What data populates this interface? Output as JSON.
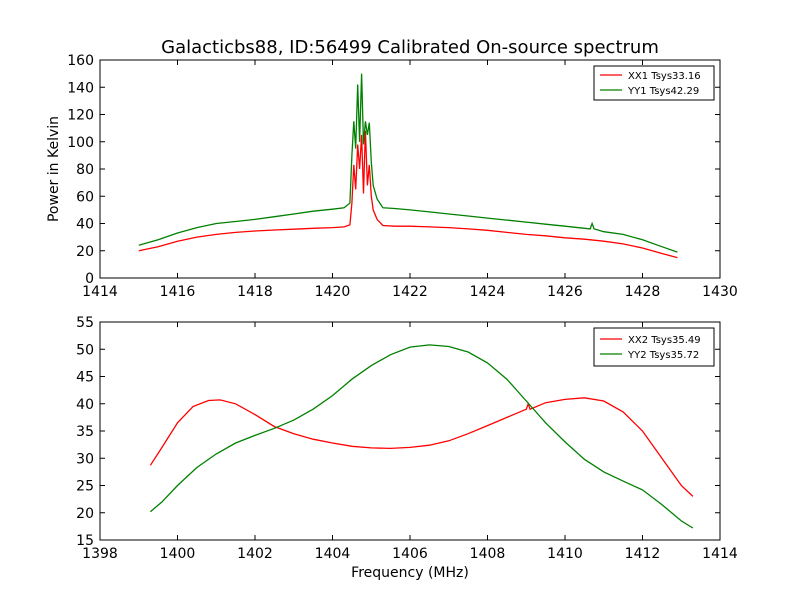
{
  "figure": {
    "title": "Galacticbs88, ID:56499 Calibrated On-source spectrum"
  },
  "chart_data": [
    {
      "type": "line",
      "title": "Galacticbs88, ID:56499 Calibrated On-source spectrum",
      "xlabel": "",
      "ylabel": "Power in Kelvin",
      "xlim": [
        1414,
        1430
      ],
      "ylim": [
        0,
        160
      ],
      "xticks": [
        1414,
        1416,
        1418,
        1420,
        1422,
        1424,
        1426,
        1428,
        1430
      ],
      "yticks": [
        0,
        20,
        40,
        60,
        80,
        100,
        120,
        140,
        160
      ],
      "grid": false,
      "legend": "top-right",
      "series": [
        {
          "name": "XX1 Tsys33.16",
          "color": "#ff0000",
          "points": [
            [
              1415.0,
              20
            ],
            [
              1415.5,
              23
            ],
            [
              1416.0,
              27
            ],
            [
              1416.5,
              30
            ],
            [
              1417.0,
              32
            ],
            [
              1417.5,
              33.5
            ],
            [
              1418.0,
              34.5
            ],
            [
              1418.5,
              35.2
            ],
            [
              1419.0,
              35.8
            ],
            [
              1419.5,
              36.5
            ],
            [
              1420.0,
              37
            ],
            [
              1420.3,
              37.5
            ],
            [
              1420.45,
              39
            ],
            [
              1420.5,
              55
            ],
            [
              1420.55,
              83
            ],
            [
              1420.6,
              65
            ],
            [
              1420.65,
              98
            ],
            [
              1420.7,
              80
            ],
            [
              1420.75,
              105
            ],
            [
              1420.8,
              62
            ],
            [
              1420.85,
              108
            ],
            [
              1420.9,
              68
            ],
            [
              1420.95,
              83
            ],
            [
              1421.0,
              60
            ],
            [
              1421.05,
              50
            ],
            [
              1421.15,
              43
            ],
            [
              1421.3,
              38.5
            ],
            [
              1421.6,
              38
            ],
            [
              1422.0,
              38
            ],
            [
              1422.5,
              37.5
            ],
            [
              1423.0,
              37
            ],
            [
              1423.5,
              36
            ],
            [
              1424.0,
              35
            ],
            [
              1424.5,
              33.5
            ],
            [
              1425.0,
              32
            ],
            [
              1425.5,
              31
            ],
            [
              1426.0,
              29.5
            ],
            [
              1426.5,
              28.5
            ],
            [
              1427.0,
              27
            ],
            [
              1427.5,
              25
            ],
            [
              1428.0,
              22
            ],
            [
              1428.5,
              18
            ],
            [
              1428.9,
              15
            ]
          ]
        },
        {
          "name": "YY1 Tsys42.29",
          "color": "#008000",
          "points": [
            [
              1415.0,
              24
            ],
            [
              1415.5,
              28
            ],
            [
              1416.0,
              33
            ],
            [
              1416.5,
              37
            ],
            [
              1417.0,
              40
            ],
            [
              1417.5,
              41.5
            ],
            [
              1418.0,
              43
            ],
            [
              1418.5,
              45
            ],
            [
              1419.0,
              47
            ],
            [
              1419.5,
              49
            ],
            [
              1420.0,
              50.5
            ],
            [
              1420.3,
              51.5
            ],
            [
              1420.45,
              55
            ],
            [
              1420.5,
              90
            ],
            [
              1420.55,
              115
            ],
            [
              1420.6,
              95
            ],
            [
              1420.65,
              142
            ],
            [
              1420.7,
              100
            ],
            [
              1420.75,
              150
            ],
            [
              1420.8,
              98
            ],
            [
              1420.85,
              115
            ],
            [
              1420.9,
              105
            ],
            [
              1420.95,
              114
            ],
            [
              1421.0,
              85
            ],
            [
              1421.05,
              68
            ],
            [
              1421.15,
              58
            ],
            [
              1421.3,
              51.5
            ],
            [
              1421.6,
              51
            ],
            [
              1422.0,
              50
            ],
            [
              1422.5,
              48.5
            ],
            [
              1423.0,
              47
            ],
            [
              1423.5,
              45.5
            ],
            [
              1424.0,
              44
            ],
            [
              1424.5,
              42.5
            ],
            [
              1425.0,
              41
            ],
            [
              1425.5,
              39.5
            ],
            [
              1426.0,
              38
            ],
            [
              1426.5,
              36.5
            ],
            [
              1426.65,
              36
            ],
            [
              1426.7,
              40
            ],
            [
              1426.75,
              36
            ],
            [
              1427.0,
              34
            ],
            [
              1427.5,
              32
            ],
            [
              1428.0,
              28
            ],
            [
              1428.5,
              23
            ],
            [
              1428.9,
              19
            ]
          ]
        }
      ]
    },
    {
      "type": "line",
      "title": "",
      "xlabel": "Frequency (MHz)",
      "ylabel": "",
      "xlim": [
        1398,
        1414
      ],
      "ylim": [
        15,
        55
      ],
      "xticks": [
        1398,
        1400,
        1402,
        1404,
        1406,
        1408,
        1410,
        1412,
        1414
      ],
      "yticks": [
        15,
        20,
        25,
        30,
        35,
        40,
        45,
        50,
        55
      ],
      "grid": false,
      "legend": "top-right",
      "series": [
        {
          "name": "XX2 Tsys35.49",
          "color": "#ff0000",
          "points": [
            [
              1399.3,
              28.7
            ],
            [
              1399.6,
              32
            ],
            [
              1400.0,
              36.5
            ],
            [
              1400.4,
              39.5
            ],
            [
              1400.8,
              40.6
            ],
            [
              1401.1,
              40.7
            ],
            [
              1401.5,
              40
            ],
            [
              1402.0,
              38
            ],
            [
              1402.5,
              35.8
            ],
            [
              1403.0,
              34.5
            ],
            [
              1403.5,
              33.5
            ],
            [
              1404.0,
              32.8
            ],
            [
              1404.5,
              32.2
            ],
            [
              1405.0,
              31.9
            ],
            [
              1405.5,
              31.8
            ],
            [
              1406.0,
              32.0
            ],
            [
              1406.5,
              32.4
            ],
            [
              1407.0,
              33.2
            ],
            [
              1407.5,
              34.5
            ],
            [
              1408.0,
              36
            ],
            [
              1408.5,
              37.5
            ],
            [
              1409.0,
              39
            ],
            [
              1409.05,
              40
            ],
            [
              1409.1,
              39
            ],
            [
              1409.5,
              40.2
            ],
            [
              1410.0,
              40.8
            ],
            [
              1410.5,
              41.1
            ],
            [
              1411.0,
              40.5
            ],
            [
              1411.5,
              38.5
            ],
            [
              1412.0,
              35
            ],
            [
              1412.5,
              30
            ],
            [
              1413.0,
              25
            ],
            [
              1413.3,
              23
            ]
          ]
        },
        {
          "name": "YY2 Tsys35.72",
          "color": "#008000",
          "points": [
            [
              1399.3,
              20.2
            ],
            [
              1399.6,
              22
            ],
            [
              1400.0,
              25
            ],
            [
              1400.5,
              28.3
            ],
            [
              1401.0,
              30.8
            ],
            [
              1401.5,
              32.8
            ],
            [
              1402.0,
              34.2
            ],
            [
              1402.5,
              35.5
            ],
            [
              1403.0,
              37
            ],
            [
              1403.5,
              39
            ],
            [
              1404.0,
              41.5
            ],
            [
              1404.5,
              44.5
            ],
            [
              1405.0,
              47
            ],
            [
              1405.5,
              49
            ],
            [
              1406.0,
              50.4
            ],
            [
              1406.5,
              50.8
            ],
            [
              1407.0,
              50.5
            ],
            [
              1407.5,
              49.5
            ],
            [
              1408.0,
              47.5
            ],
            [
              1408.5,
              44.5
            ],
            [
              1409.0,
              40.5
            ],
            [
              1409.5,
              36.5
            ],
            [
              1410.0,
              33
            ],
            [
              1410.5,
              29.8
            ],
            [
              1411.0,
              27.5
            ],
            [
              1411.5,
              25.8
            ],
            [
              1412.0,
              24.2
            ],
            [
              1412.5,
              21.5
            ],
            [
              1413.0,
              18.5
            ],
            [
              1413.3,
              17.2
            ]
          ]
        }
      ]
    }
  ]
}
